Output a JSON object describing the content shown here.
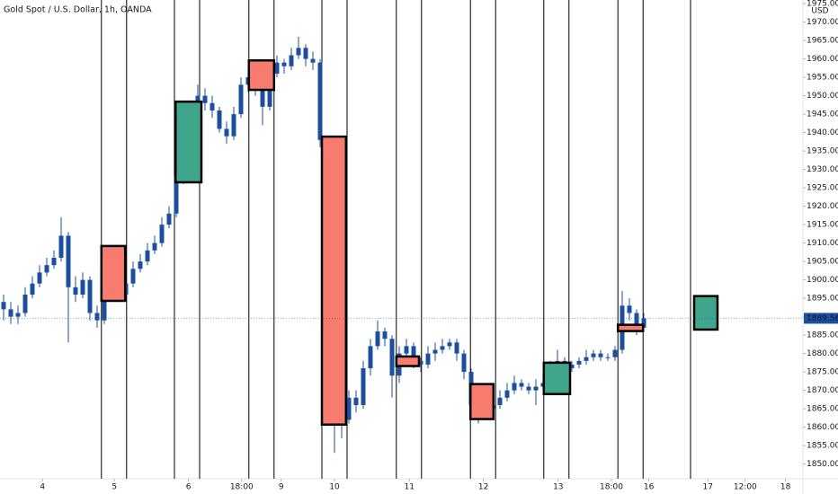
{
  "chart_data": {
    "type": "candlestick",
    "title": "Gold Spot / U.S. Dollar, 1h, OANDA",
    "currency": "USD",
    "color": "#1c4fa0",
    "ylim": [
      1846,
      1976
    ],
    "yticks": [
      {
        "value": 1850,
        "label": "1850.000"
      },
      {
        "value": 1855,
        "label": "1855.000"
      },
      {
        "value": 1860,
        "label": "1860.000"
      },
      {
        "value": 1865,
        "label": "1865.000"
      },
      {
        "value": 1870,
        "label": "1870.000"
      },
      {
        "value": 1875,
        "label": "1875.000"
      },
      {
        "value": 1880,
        "label": "1880.000"
      },
      {
        "value": 1885,
        "label": "1885.000"
      },
      {
        "value": 1890,
        "label": "1890.000"
      },
      {
        "value": 1895,
        "label": "1895.000"
      },
      {
        "value": 1900,
        "label": "1900.000"
      },
      {
        "value": 1905,
        "label": "1905.000"
      },
      {
        "value": 1910,
        "label": "1910.000"
      },
      {
        "value": 1915,
        "label": "1915.000"
      },
      {
        "value": 1920,
        "label": "1920.000"
      },
      {
        "value": 1925,
        "label": "1925.000"
      },
      {
        "value": 1930,
        "label": "1930.000"
      },
      {
        "value": 1935,
        "label": "1935.000"
      },
      {
        "value": 1940,
        "label": "1940.000"
      },
      {
        "value": 1945,
        "label": "1945.000"
      },
      {
        "value": 1950,
        "label": "1950.000"
      },
      {
        "value": 1955,
        "label": "1955.000"
      },
      {
        "value": 1960,
        "label": "1960.000"
      },
      {
        "value": 1965,
        "label": "1965.000"
      },
      {
        "value": 1970,
        "label": "1970.000"
      },
      {
        "value": 1975,
        "label": "1975.000"
      }
    ],
    "xlim": [
      0,
      111.625
    ],
    "xticks": [
      {
        "value": 5.9,
        "label": "4"
      },
      {
        "value": 15.9,
        "label": "5"
      },
      {
        "value": 26.2,
        "label": "6"
      },
      {
        "value": 33.6,
        "label": "18:00"
      },
      {
        "value": 39.1,
        "label": "9"
      },
      {
        "value": 46.5,
        "label": "10"
      },
      {
        "value": 56.9,
        "label": "11"
      },
      {
        "value": 67.2,
        "label": "12"
      },
      {
        "value": 77.6,
        "label": "13"
      },
      {
        "value": 85,
        "label": "18:00"
      },
      {
        "value": 90.2,
        "label": "16"
      },
      {
        "value": 98.4,
        "label": "17"
      },
      {
        "value": 103.6,
        "label": "12:00"
      },
      {
        "value": 109.2,
        "label": "18"
      }
    ],
    "grid": false,
    "open": [
      1894,
      1892,
      1890,
      1891,
      1896,
      1899,
      1902,
      1904,
      1906,
      1912,
      1898,
      1896,
      1900,
      1891,
      1889,
      1906,
      1901,
      1896,
      1899,
      1903,
      1905,
      1908,
      1910,
      1915,
      1918,
      1928,
      1940,
      1946,
      1950,
      1948,
      1946,
      1941,
      1939,
      1945,
      1953,
      1955,
      1952,
      1947,
      1956,
      1959,
      1958,
      1961,
      1963,
      1960,
      1959,
      1938,
      1880,
      1862,
      1862,
      1868,
      1866,
      1876,
      1882,
      1886,
      1884,
      1874,
      1880,
      1882,
      1878,
      1877,
      1880,
      1881,
      1882,
      1883,
      1880,
      1875,
      1866,
      1864,
      1865,
      1866,
      1868,
      1870,
      1872,
      1871,
      1870,
      1871,
      1872,
      1876,
      1878,
      1876,
      1877,
      1878,
      1879,
      1880,
      1879,
      1879,
      1881,
      1893,
      1891,
      1887
    ],
    "high": [
      1896,
      1894,
      1893,
      1898,
      1901,
      1904,
      1906,
      1908,
      1917,
      1913,
      1901,
      1902,
      1901,
      1893,
      1909,
      1907,
      1902,
      1901,
      1905,
      1907,
      1910,
      1912,
      1917,
      1920,
      1930,
      1942,
      1948,
      1953,
      1952,
      1950,
      1947,
      1943,
      1947,
      1955,
      1958,
      1956,
      1953,
      1958,
      1961,
      1960,
      1963,
      1966,
      1964,
      1962,
      1960,
      1939,
      1881,
      1866,
      1870,
      1870,
      1878,
      1884,
      1889,
      1887,
      1885,
      1882,
      1884,
      1883,
      1879,
      1882,
      1883,
      1884,
      1884,
      1884,
      1881,
      1876,
      1867,
      1867,
      1868,
      1870,
      1872,
      1874,
      1873,
      1872,
      1873,
      1874,
      1878,
      1881,
      1879,
      1878,
      1879,
      1881,
      1881,
      1881,
      1880,
      1882,
      1897,
      1895,
      1892,
      1891
    ],
    "low": [
      1889,
      1888,
      1888,
      1890,
      1895,
      1898,
      1901,
      1903,
      1905,
      1883,
      1894,
      1895,
      1889,
      1887,
      1888,
      1899,
      1894,
      1895,
      1898,
      1902,
      1904,
      1907,
      1909,
      1914,
      1917,
      1926,
      1938,
      1945,
      1946,
      1944,
      1940,
      1937,
      1938,
      1944,
      1951,
      1950,
      1942,
      1946,
      1955,
      1956,
      1957,
      1960,
      1958,
      1957,
      1936,
      1866,
      1853,
      1857,
      1861,
      1864,
      1865,
      1874,
      1881,
      1882,
      1868,
      1872,
      1878,
      1876,
      1875,
      1876,
      1878,
      1880,
      1881,
      1878,
      1873,
      1862,
      1861,
      1862,
      1864,
      1865,
      1867,
      1869,
      1870,
      1869,
      1866,
      1870,
      1871,
      1874,
      1874,
      1875,
      1876,
      1877,
      1878,
      1878,
      1878,
      1878,
      1880,
      1889,
      1885,
      1886
    ],
    "close": [
      1892,
      1890,
      1891,
      1896,
      1899,
      1902,
      1904,
      1906,
      1912,
      1898,
      1896,
      1900,
      1891,
      1889,
      1906,
      1901,
      1896,
      1899,
      1903,
      1905,
      1908,
      1910,
      1915,
      1918,
      1928,
      1940,
      1946,
      1950,
      1948,
      1946,
      1941,
      1939,
      1945,
      1953,
      1955,
      1952,
      1947,
      1956,
      1959,
      1958,
      1961,
      1963,
      1960,
      1959,
      1938,
      1880,
      1862,
      1862,
      1868,
      1866,
      1876,
      1882,
      1886,
      1884,
      1874,
      1880,
      1882,
      1878,
      1877,
      1880,
      1881,
      1882,
      1883,
      1880,
      1875,
      1866,
      1864,
      1865,
      1866,
      1868,
      1870,
      1872,
      1871,
      1870,
      1871,
      1872,
      1876,
      1878,
      1876,
      1877,
      1878,
      1879,
      1880,
      1879,
      1879,
      1881,
      1893,
      1891,
      1887,
      1889.565
    ],
    "vlines": [
      14.1,
      17.6,
      24.25,
      27.75,
      34.6,
      38.1,
      44.75,
      48.25,
      55.1,
      58.6,
      65.4,
      68.9,
      75.6,
      79.1,
      85.9,
      89.4,
      96
    ],
    "boxes": [
      {
        "x": [
          14.1,
          17.4
        ],
        "y": [
          1894.3,
          1909.2
        ],
        "color": "#f77c6f"
      },
      {
        "x": [
          24.4,
          28
        ],
        "y": [
          1926.5,
          1948.4
        ],
        "color": "#3fa68c"
      },
      {
        "x": [
          34.6,
          38.1
        ],
        "y": [
          1951.6,
          1959.6
        ],
        "color": "#f77c6f"
      },
      {
        "x": [
          44.75,
          48.1
        ],
        "y": [
          1860.7,
          1938.9
        ],
        "color": "#f77c6f"
      },
      {
        "x": [
          55.1,
          58.25
        ],
        "y": [
          1876.6,
          1879.2
        ],
        "color": "#f77c6f"
      },
      {
        "x": [
          65.4,
          68.6
        ],
        "y": [
          1862.2,
          1871.7
        ],
        "color": "#f77c6f"
      },
      {
        "x": [
          75.6,
          79.25
        ],
        "y": [
          1869,
          1877.5
        ],
        "color": "#3fa68c"
      },
      {
        "x": [
          85.9,
          89.4
        ],
        "y": [
          1886.1,
          1887.8
        ],
        "color": "#f77c6f"
      },
      {
        "x": [
          96.5,
          99.75
        ],
        "y": [
          1886.5,
          1895.6
        ],
        "color": "#3fa68c"
      }
    ]
  }
}
